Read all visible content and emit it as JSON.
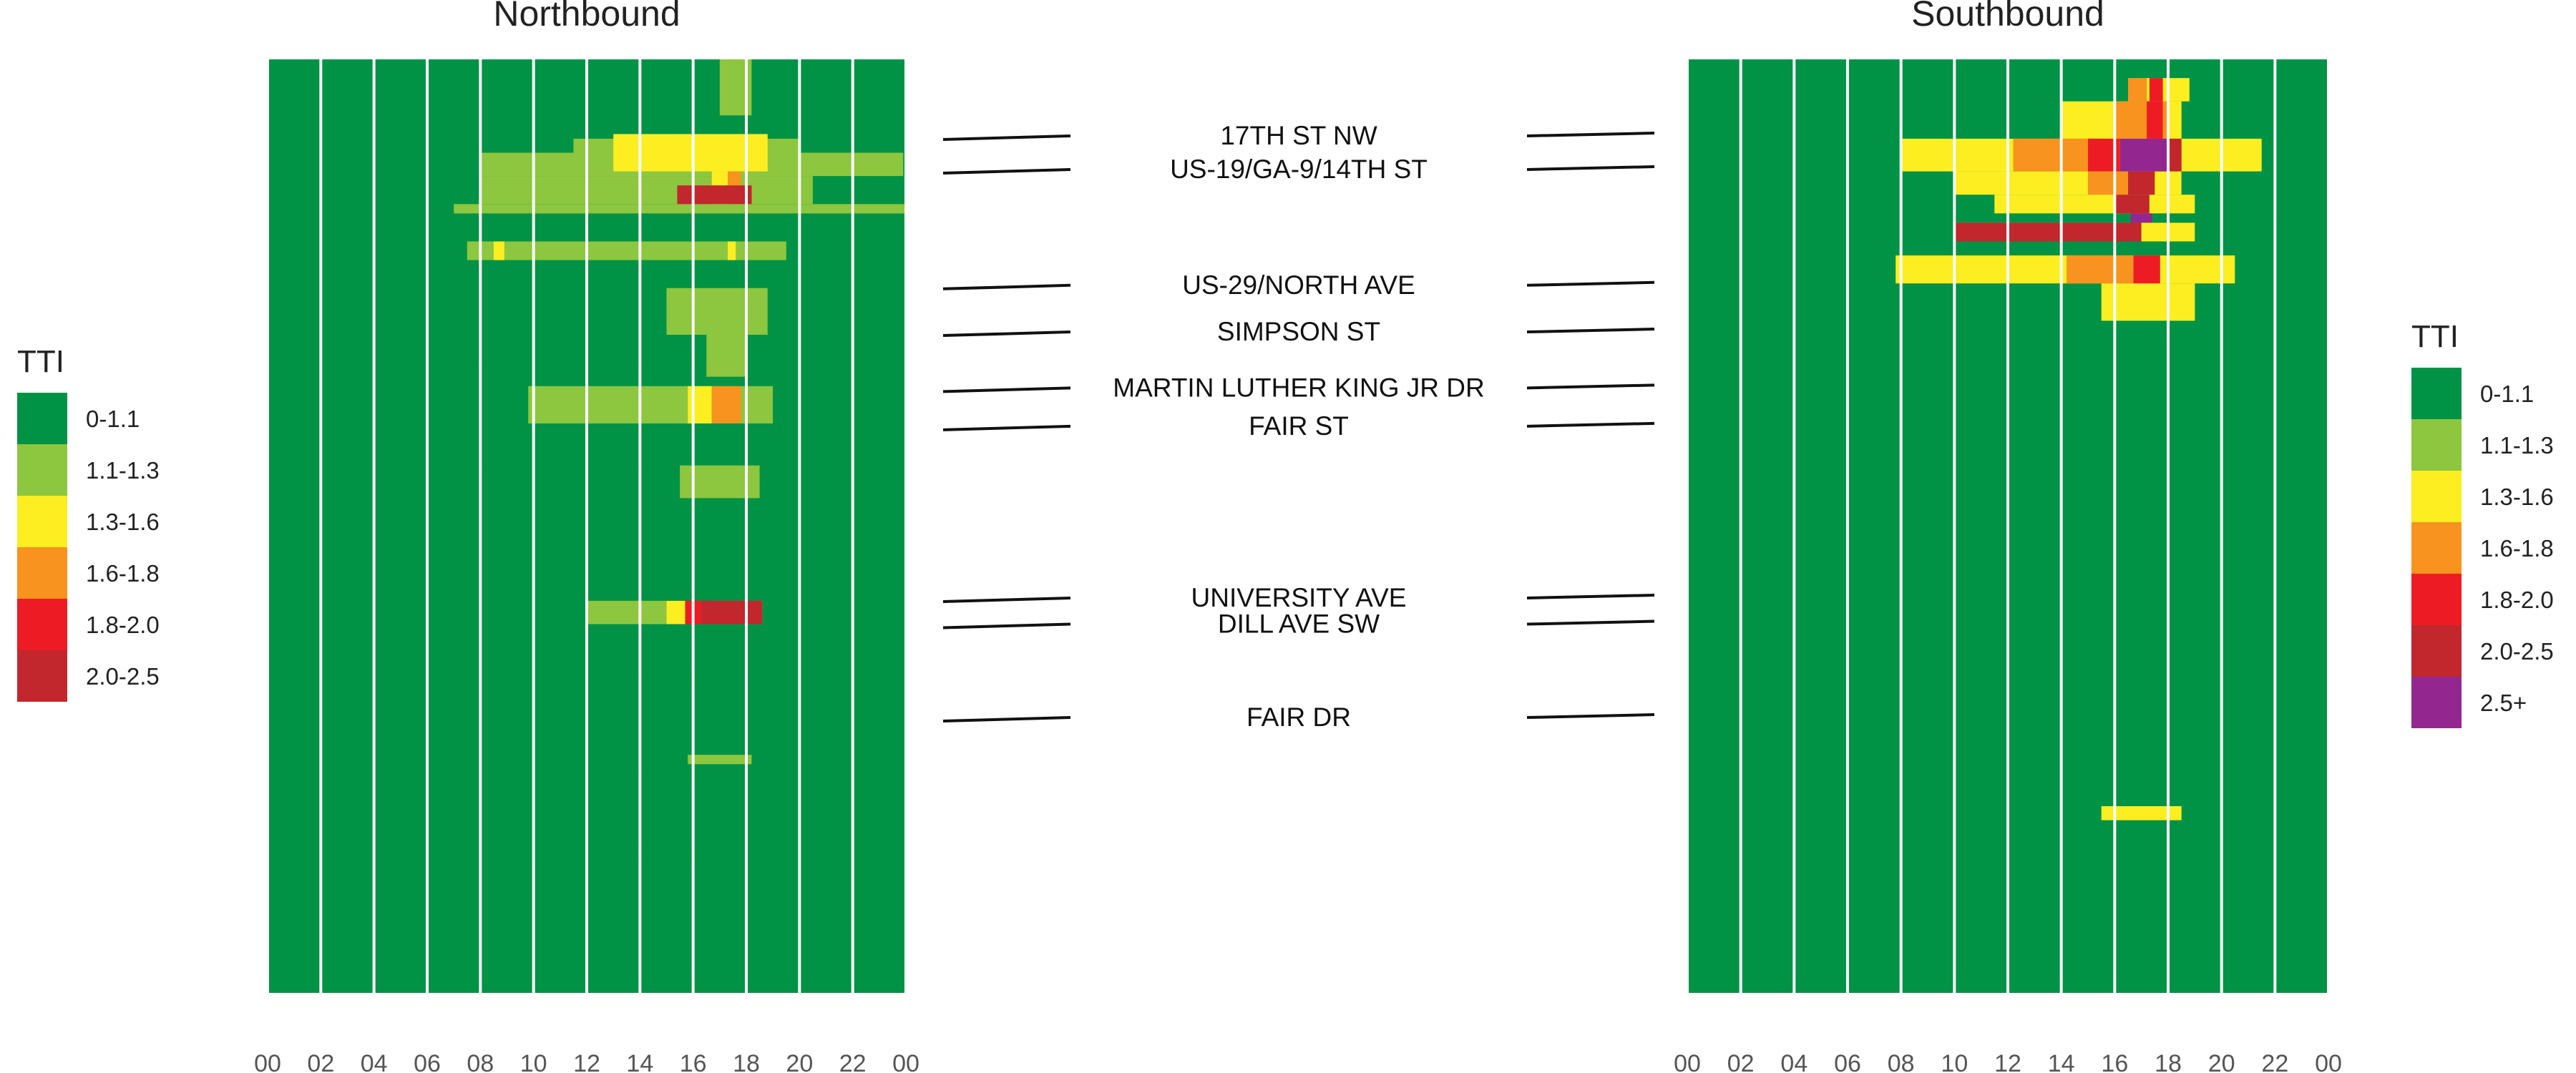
{
  "chart_data": {
    "type": "heatmap",
    "metric": "TTI",
    "x_ticks": [
      "00",
      "02",
      "04",
      "06",
      "08",
      "10",
      "12",
      "14",
      "16",
      "18",
      "20",
      "22",
      "00"
    ],
    "x_range_hours": [
      0,
      24
    ],
    "landmarks": [
      {
        "name": "17TH ST NW",
        "pos": 0.082
      },
      {
        "name": "US-19/GA-9/14TH ST",
        "pos": 0.118
      },
      {
        "name": "US-29/NORTH AVE",
        "pos": 0.242
      },
      {
        "name": "SIMPSON ST",
        "pos": 0.292
      },
      {
        "name": "MARTIN LUTHER KING JR DR",
        "pos": 0.352
      },
      {
        "name": "FAIR ST",
        "pos": 0.393
      },
      {
        "name": "UNIVERSITY AVE",
        "pos": 0.577
      },
      {
        "name": "DILL AVE SW",
        "pos": 0.605
      },
      {
        "name": "FAIR DR",
        "pos": 0.705
      }
    ],
    "panels": [
      {
        "title": "Northbound",
        "legend": {
          "title": "TTI",
          "items": [
            {
              "label": "0-1.1",
              "color": "#009245"
            },
            {
              "label": "1.1-1.3",
              "color": "#8dc63f"
            },
            {
              "label": "1.3-1.6",
              "color": "#fcee21"
            },
            {
              "label": "1.6-1.8",
              "color": "#f7931e"
            },
            {
              "label": "1.8-2.0",
              "color": "#ed1c24"
            },
            {
              "label": "2.0-2.5",
              "color": "#c1272d"
            }
          ]
        },
        "cells": [
          [
            0.0,
            0.16,
            7.9,
            20.0,
            1
          ],
          [
            0.16,
            0.245,
            7.8,
            20.0,
            1
          ],
          [
            0.245,
            0.33,
            7.6,
            19.8,
            1
          ],
          [
            0.33,
            0.44,
            7.5,
            20.5,
            1
          ],
          [
            0.44,
            0.5,
            7.7,
            19.5,
            1
          ],
          [
            0.5,
            0.62,
            7.5,
            19.5,
            1
          ],
          [
            0.62,
            0.66,
            9.0,
            19.0,
            1
          ],
          [
            0.66,
            0.76,
            11.5,
            18.0,
            1
          ],
          [
            0.76,
            0.8,
            10.0,
            18.0,
            1
          ],
          [
            0.8,
            0.81,
            7.5,
            23.9,
            1
          ],
          [
            0.84,
            0.86,
            11.5,
            14.5,
            1
          ],
          [
            0.86,
            1.0,
            9.8,
            19.6,
            1
          ],
          [
            0.0,
            0.06,
            17.0,
            18.2,
            2
          ],
          [
            0.085,
            0.1,
            11.5,
            20.0,
            2
          ],
          [
            0.1,
            0.125,
            8.0,
            23.9,
            2
          ],
          [
            0.125,
            0.155,
            8.0,
            20.5,
            2
          ],
          [
            0.155,
            0.165,
            7.0,
            24.0,
            2
          ],
          [
            0.195,
            0.215,
            7.5,
            19.5,
            2
          ],
          [
            0.245,
            0.295,
            15.0,
            18.8,
            2
          ],
          [
            0.295,
            0.34,
            16.5,
            18.0,
            2
          ],
          [
            0.35,
            0.39,
            9.8,
            19.0,
            2
          ],
          [
            0.435,
            0.47,
            15.5,
            18.5,
            2
          ],
          [
            0.58,
            0.605,
            12.0,
            15.0,
            2
          ],
          [
            0.58,
            0.605,
            16.8,
            18.6,
            2
          ],
          [
            0.745,
            0.755,
            15.8,
            18.2,
            2
          ],
          [
            0.08,
            0.12,
            13.0,
            18.8,
            3
          ],
          [
            0.12,
            0.155,
            16.7,
            17.3,
            3
          ],
          [
            0.195,
            0.215,
            8.5,
            8.9,
            3
          ],
          [
            0.195,
            0.215,
            17.3,
            17.6,
            3
          ],
          [
            0.35,
            0.39,
            15.8,
            16.7,
            3
          ],
          [
            0.58,
            0.605,
            15.0,
            15.7,
            3
          ],
          [
            0.12,
            0.155,
            17.3,
            17.8,
            4
          ],
          [
            0.35,
            0.39,
            16.7,
            17.8,
            4
          ],
          [
            0.58,
            0.605,
            15.7,
            16.3,
            5
          ],
          [
            0.58,
            0.605,
            16.3,
            18.6,
            6
          ],
          [
            0.135,
            0.155,
            15.4,
            18.2,
            6
          ]
        ]
      },
      {
        "title": "Southbound",
        "legend": {
          "title": "TTI",
          "items": [
            {
              "label": "0-1.1",
              "color": "#009245"
            },
            {
              "label": "1.1-1.3",
              "color": "#8dc63f"
            },
            {
              "label": "1.3-1.6",
              "color": "#fcee21"
            },
            {
              "label": "1.6-1.8",
              "color": "#f7931e"
            },
            {
              "label": "1.8-2.0",
              "color": "#ed1c24"
            },
            {
              "label": "2.0-2.5",
              "color": "#c1272d"
            },
            {
              "label": "2.5+",
              "color": "#93278f"
            }
          ]
        },
        "cells": [
          [
            0.02,
            0.08,
            8.0,
            20.0,
            1
          ],
          [
            0.08,
            0.17,
            7.0,
            24.0,
            1
          ],
          [
            0.17,
            0.24,
            7.8,
            20.5,
            1
          ],
          [
            0.24,
            0.35,
            14.0,
            18.5,
            1
          ],
          [
            0.39,
            0.43,
            14.0,
            18.3,
            1
          ],
          [
            0.435,
            0.445,
            7.8,
            15.0,
            1
          ],
          [
            0.47,
            0.58,
            16.5,
            17.0,
            1
          ],
          [
            0.58,
            0.605,
            15.3,
            18.7,
            1
          ],
          [
            0.705,
            0.755,
            12.0,
            18.0,
            1
          ],
          [
            0.755,
            0.8,
            10.0,
            19.5,
            1
          ],
          [
            0.8,
            1.0,
            9.2,
            20.0,
            1
          ],
          [
            0.02,
            0.045,
            17.2,
            18.8,
            3
          ],
          [
            0.045,
            0.085,
            14.0,
            18.5,
            3
          ],
          [
            0.085,
            0.12,
            8.0,
            21.5,
            3
          ],
          [
            0.12,
            0.145,
            10.0,
            18.5,
            3
          ],
          [
            0.145,
            0.165,
            11.5,
            19.0,
            3
          ],
          [
            0.175,
            0.195,
            10.0,
            19.0,
            3
          ],
          [
            0.21,
            0.24,
            7.8,
            20.5,
            3
          ],
          [
            0.24,
            0.28,
            15.5,
            19.0,
            3
          ],
          [
            0.8,
            0.815,
            15.5,
            18.5,
            3
          ],
          [
            0.02,
            0.045,
            16.5,
            17.2,
            4
          ],
          [
            0.045,
            0.085,
            16.0,
            18.0,
            4
          ],
          [
            0.085,
            0.12,
            12.2,
            15.0,
            4
          ],
          [
            0.12,
            0.145,
            15.0,
            16.5,
            4
          ],
          [
            0.21,
            0.24,
            14.2,
            16.7,
            4
          ],
          [
            0.02,
            0.045,
            17.3,
            17.8,
            5
          ],
          [
            0.045,
            0.085,
            17.2,
            17.8,
            5
          ],
          [
            0.085,
            0.12,
            15.0,
            16.2,
            5
          ],
          [
            0.21,
            0.24,
            16.7,
            17.7,
            5
          ],
          [
            0.085,
            0.12,
            18.0,
            18.5,
            6
          ],
          [
            0.12,
            0.145,
            16.5,
            17.5,
            6
          ],
          [
            0.145,
            0.165,
            16.0,
            17.3,
            6
          ],
          [
            0.175,
            0.195,
            10.0,
            17.0,
            6
          ],
          [
            0.085,
            0.12,
            16.2,
            18.0,
            7
          ],
          [
            0.165,
            0.175,
            16.6,
            17.4,
            7
          ]
        ]
      }
    ]
  }
}
